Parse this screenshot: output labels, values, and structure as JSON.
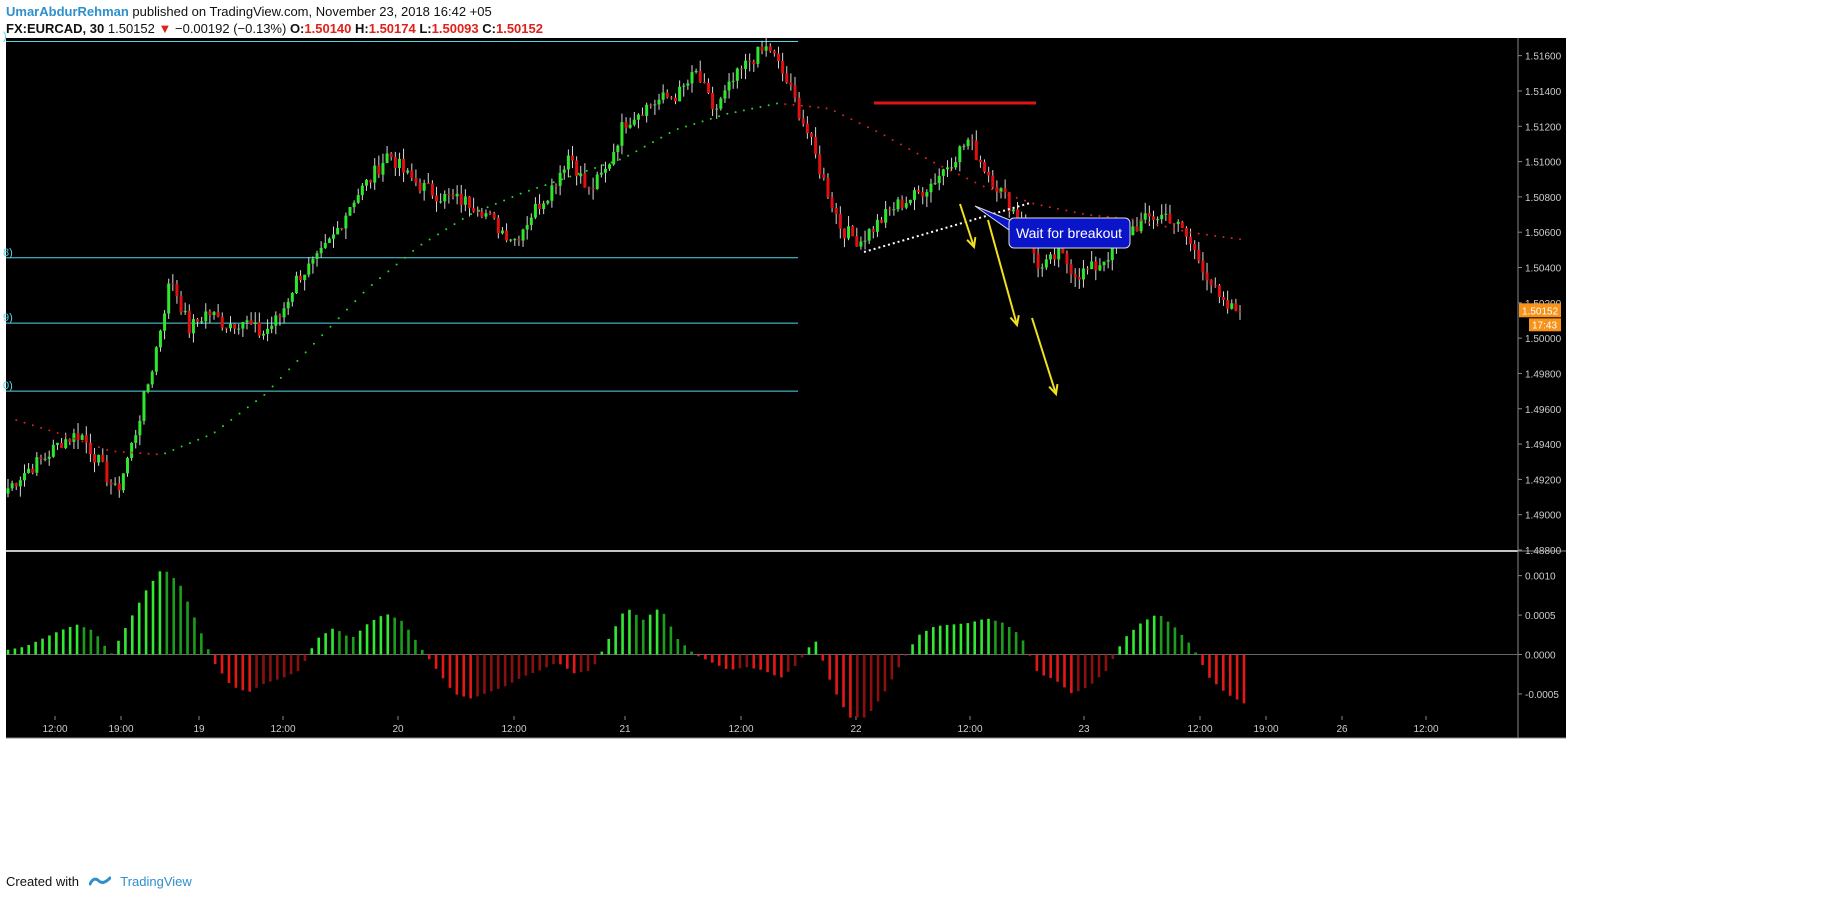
{
  "header": {
    "author": "UmarAbdurRehman",
    "published": " published on TradingView.com, November 23, 2018 16:42 +05",
    "symbol": "FX:EURCAD, 30",
    "last": "1.50152",
    "change": "−0.00192 (−0.13%)",
    "o_label": "O:",
    "o_value": "1.50140",
    "h_label": "H:",
    "h_value": "1.50174",
    "l_label": "L:",
    "l_value": "1.50093",
    "c_label": "C:",
    "c_value": "1.50152"
  },
  "footer": {
    "created_with": "Created with",
    "brand": "TradingView"
  },
  "colors": {
    "background": "#000000",
    "up": "#2ee62e",
    "down": "#e01010",
    "fib": "#4fd8e6",
    "ma_up": "#22dd22",
    "ma_down": "#e02020",
    "annotation_arrow": "#f0e020",
    "callout": "#0a14c8",
    "price_tag": "#f7931a"
  },
  "chart_data": {
    "type": "candlestick",
    "symbol": "FX:EURCAD",
    "timeframe": "30",
    "ylim": [
      1.488,
      1.517
    ],
    "y_ticks": [
      "1.51600",
      "1.51400",
      "1.51200",
      "1.51000",
      "1.50800",
      "1.50600",
      "1.50400",
      "1.50200",
      "1.50000",
      "1.49800",
      "1.49600",
      "1.49400",
      "1.49200",
      "1.49000",
      "1.48800"
    ],
    "x_ticks": [
      "12:00",
      "19:00",
      "19",
      "12:00",
      "20",
      "12:00",
      "21",
      "12:00",
      "22",
      "12:00",
      "23",
      "12:00",
      "19:00",
      "26",
      "12:00"
    ],
    "price_path": [
      1.4915,
      1.4925,
      1.4932,
      1.4942,
      1.4946,
      1.493,
      1.4912,
      1.4945,
      1.4985,
      1.5035,
      1.5005,
      1.5015,
      1.5008,
      1.501,
      1.5002,
      1.5012,
      1.5035,
      1.5043,
      1.5058,
      1.5078,
      1.509,
      1.5105,
      1.5092,
      1.5085,
      1.508,
      1.5078,
      1.5075,
      1.5063,
      1.5056,
      1.5072,
      1.5085,
      1.5105,
      1.5082,
      1.5095,
      1.5122,
      1.513,
      1.5135,
      1.5138,
      1.515,
      1.5128,
      1.5145,
      1.5158,
      1.5165,
      1.5145,
      1.512,
      1.509,
      1.5062,
      1.5055,
      1.5065,
      1.5075,
      1.508,
      1.5088,
      1.51,
      1.5112,
      1.5095,
      1.508,
      1.5065,
      1.5038,
      1.5048,
      1.5036,
      1.504,
      1.505,
      1.5062,
      1.5068,
      1.507,
      1.5058,
      1.504,
      1.5018,
      1.50152
    ],
    "ma_path": [
      1.4955,
      1.4946,
      1.4936,
      1.4934,
      1.4946,
      1.4968,
      1.4998,
      1.5028,
      1.5052,
      1.507,
      1.5082,
      1.5092,
      1.5102,
      1.5118,
      1.5127,
      1.5133,
      1.513,
      1.5116,
      1.51,
      1.5086,
      1.5076,
      1.507,
      1.5067,
      1.506,
      1.5056
    ],
    "oscillator": {
      "ylim": [
        -0.00078,
        0.0013
      ],
      "y_ticks": [
        "0.0010",
        "0.0005",
        "0.0000",
        "-0.0005"
      ],
      "values": [
        6e-05,
        0.0001,
        0.0002,
        0.0003,
        0.00038,
        0.0003,
        0.0,
        0.0004,
        0.0008,
        0.0011,
        0.0009,
        0.0004,
        -0.0001,
        -0.0004,
        -0.00048,
        -0.00036,
        -0.0003,
        -0.0002,
        0.0002,
        0.00034,
        0.0002,
        0.0004,
        0.00052,
        0.00042,
        0.0001,
        -0.0002,
        -0.0005,
        -0.00056,
        -0.00048,
        -0.0004,
        -0.00028,
        -0.0002,
        -0.0001,
        -0.00024,
        -0.0002,
        0.0002,
        0.0006,
        0.00044,
        0.0006,
        0.0002,
        0.0,
        -0.0001,
        -0.0002,
        -0.00016,
        -0.0002,
        -0.0003,
        -0.00012,
        0.0002,
        -0.0004,
        -0.0008,
        -0.0008,
        -0.0005,
        -0.00012,
        0.00024,
        0.00036,
        0.00038,
        0.0004,
        0.00046,
        0.0004,
        0.00024,
        -0.00024,
        -0.00032,
        -0.0005,
        -0.0004,
        -0.0002,
        0.0002,
        0.0004,
        0.00052,
        0.00034,
        0.0001,
        -0.0003,
        -0.0005,
        -0.00062
      ]
    },
    "fib_labels": [
      ")",
      "8)",
      "9)",
      "0)"
    ],
    "fib_levels": [
      1.5168,
      1.50455,
      1.50085,
      1.497
    ],
    "annotation_text": "Wait for breakout",
    "last_price": "1.50152",
    "countdown": "17:43"
  }
}
